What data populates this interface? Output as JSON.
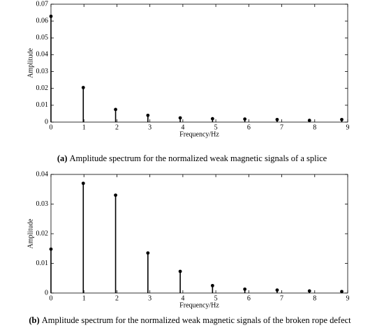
{
  "chart_data": [
    {
      "type": "stem",
      "xlabel": "Frequency/Hz",
      "ylabel": "Amplitude",
      "caption_label": "(a)",
      "caption": "Amplitude spectrum for the normalized weak magnetic signals of a splice",
      "x": [
        0,
        0.98,
        1.96,
        2.94,
        3.92,
        4.9,
        5.88,
        6.86,
        7.84,
        8.82
      ],
      "values": [
        0.0628,
        0.0205,
        0.0075,
        0.004,
        0.0025,
        0.002,
        0.0018,
        0.0015,
        0.001,
        0.0015
      ],
      "color": "#000000",
      "xlim": [
        0,
        9
      ],
      "xticks": [
        0,
        1,
        2,
        3,
        4,
        5,
        6,
        7,
        8,
        9
      ],
      "ylim": [
        0,
        0.07
      ],
      "yticks": [
        0,
        0.01,
        0.02,
        0.03,
        0.04,
        0.05,
        0.06,
        0.07
      ]
    },
    {
      "type": "stem",
      "xlabel": "Frequency/Hz",
      "ylabel": "Amplitude",
      "caption_label": "(b)",
      "caption": "Amplitude spectrum for the normalized weak magnetic signals of the broken rope defect",
      "x": [
        0,
        0.98,
        1.96,
        2.94,
        3.92,
        4.9,
        5.88,
        6.86,
        7.84,
        8.82
      ],
      "values": [
        0.0148,
        0.037,
        0.033,
        0.0135,
        0.0073,
        0.0025,
        0.0013,
        0.001,
        0.0007,
        0.0005
      ],
      "color": "#000000",
      "xlim": [
        0,
        9
      ],
      "xticks": [
        0,
        1,
        2,
        3,
        4,
        5,
        6,
        7,
        8,
        9
      ],
      "ylim": [
        0,
        0.04
      ],
      "yticks": [
        0,
        0.01,
        0.02,
        0.03,
        0.04
      ]
    }
  ]
}
